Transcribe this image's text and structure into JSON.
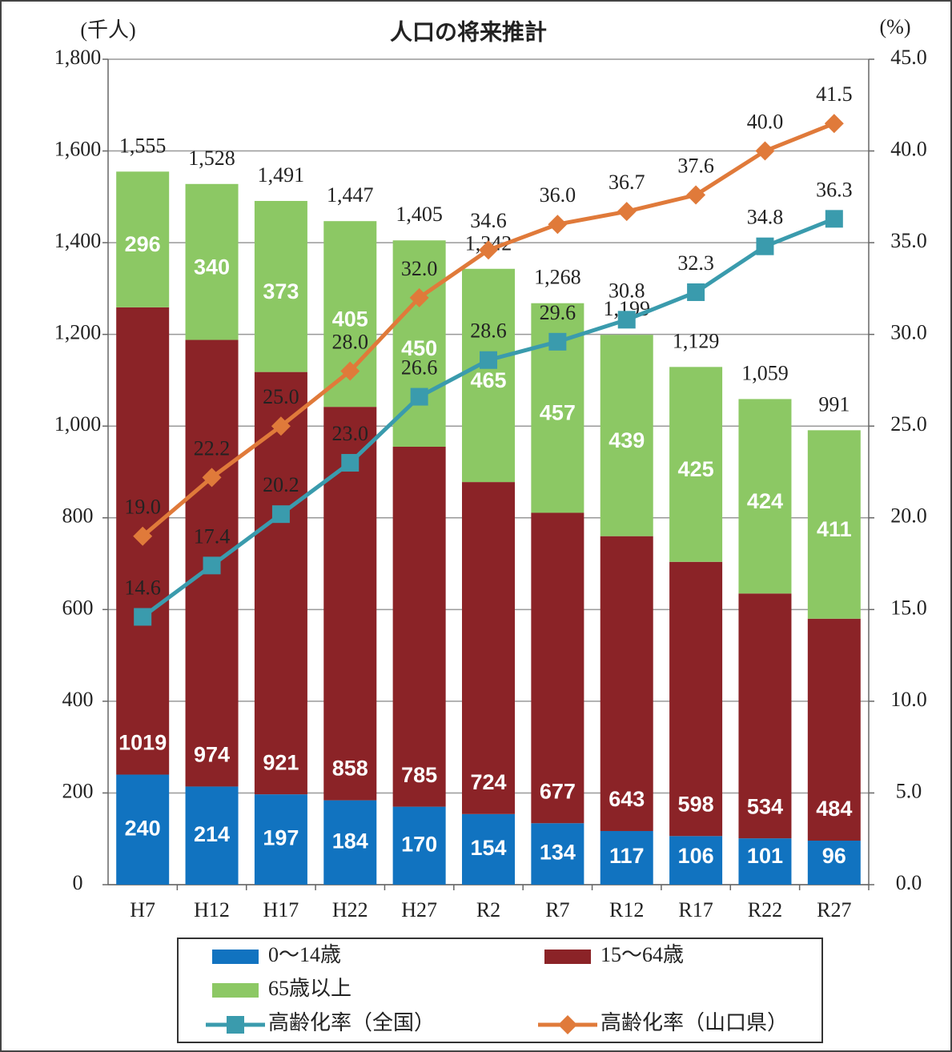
{
  "chart_data": {
    "type": "bar",
    "title": "人口の将来推計",
    "y_label": "(千人)",
    "y2_label": "(%)",
    "categories": [
      "H7",
      "H12",
      "H17",
      "H22",
      "H27",
      "R2",
      "R7",
      "R12",
      "R17",
      "R22",
      "R27"
    ],
    "stacked": true,
    "grid": true,
    "legend": "bottom",
    "series": [
      {
        "name": "0～14歳",
        "type": "bar",
        "color": "#1173c0",
        "values": [
          240,
          214,
          197,
          184,
          170,
          154,
          134,
          117,
          106,
          101,
          96
        ]
      },
      {
        "name": "15～64歳",
        "type": "bar",
        "color": "#8b2327",
        "values": [
          1019,
          974,
          921,
          858,
          785,
          724,
          677,
          643,
          598,
          534,
          484
        ]
      },
      {
        "name": "65歳以上",
        "type": "bar",
        "color": "#8cc864",
        "values": [
          296,
          340,
          373,
          405,
          450,
          465,
          457,
          439,
          425,
          424,
          411
        ]
      },
      {
        "name": "高齢化率（全国）",
        "type": "line",
        "axis": "y2",
        "marker": "square",
        "color": "#3a9bad",
        "values": [
          14.6,
          17.4,
          20.2,
          23.0,
          26.6,
          28.6,
          29.6,
          30.8,
          32.3,
          34.8,
          36.3
        ],
        "value_labels": [
          "14.6",
          "17.4",
          "20.2",
          "23.0",
          "26.6",
          "28.6",
          "29.6",
          "30.8",
          "32.3",
          "34.8",
          "36.3"
        ]
      },
      {
        "name": "高齢化率（山口県）",
        "type": "line",
        "axis": "y2",
        "marker": "diamond",
        "color": "#e07a3a",
        "values": [
          19.0,
          22.2,
          25.0,
          28.0,
          32.0,
          34.6,
          36.0,
          36.7,
          37.6,
          40.0,
          41.5
        ],
        "value_labels": [
          "19.0",
          "22.2",
          "25.0",
          "28.0",
          "32.0",
          "34.6",
          "36.0",
          "36.7",
          "37.6",
          "40.0",
          "41.5"
        ]
      }
    ],
    "totals": [
      1555,
      1528,
      1491,
      1447,
      1405,
      1342,
      1268,
      1199,
      1129,
      1059,
      991
    ],
    "total_labels": [
      "1,555",
      "1,528",
      "1,491",
      "1,447",
      "1,405",
      "1,342",
      "1,268",
      "1,199",
      "1,129",
      "1,059",
      "991"
    ],
    "ylim": [
      0,
      1800
    ],
    "yticks": [
      0,
      200,
      400,
      600,
      800,
      {
        "value": 1000,
        "label": "1,000"
      },
      {
        "value": 1200,
        "label": "1,200"
      },
      {
        "value": 1400,
        "label": "1,400"
      },
      {
        "value": 1600,
        "label": "1,600"
      },
      {
        "value": 1800,
        "label": "1,800"
      }
    ],
    "y2lim": [
      0,
      45
    ],
    "y2ticks": [
      {
        "value": 0,
        "label": "0.0"
      },
      {
        "value": 5,
        "label": "5.0"
      },
      {
        "value": 10,
        "label": "10.0"
      },
      {
        "value": 15,
        "label": "15.0"
      },
      {
        "value": 20,
        "label": "20.0"
      },
      {
        "value": 25,
        "label": "25.0"
      },
      {
        "value": 30,
        "label": "30.0"
      },
      {
        "value": 35,
        "label": "35.0"
      },
      {
        "value": 40,
        "label": "40.0"
      },
      {
        "value": 45,
        "label": "45.0"
      }
    ]
  }
}
